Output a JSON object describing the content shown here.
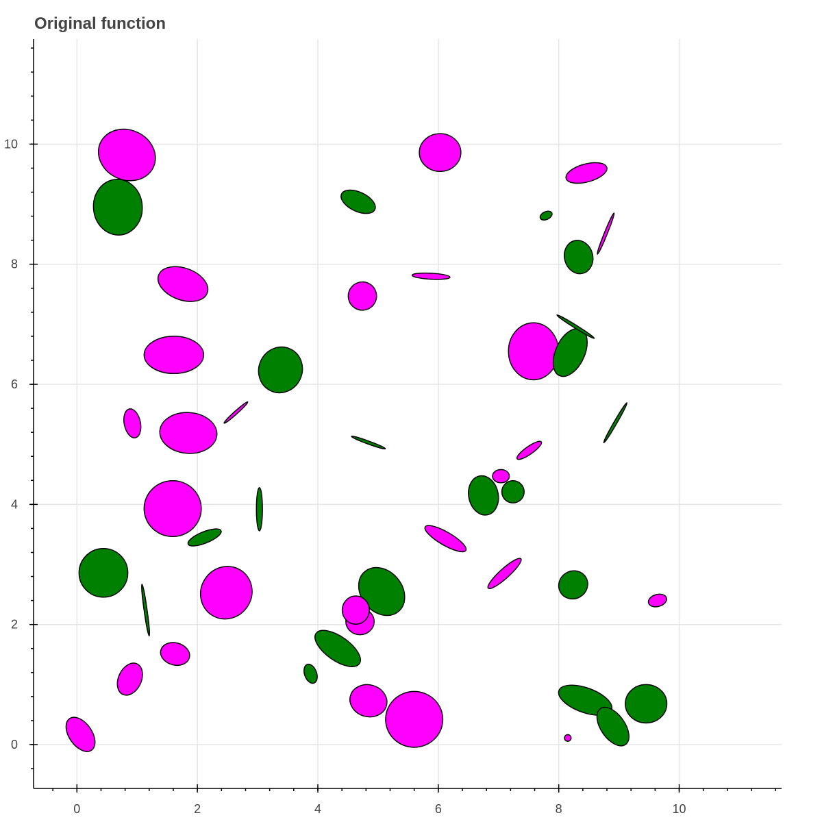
{
  "chart_data": {
    "type": "scatter",
    "title": "Original function",
    "xlabel": "",
    "ylabel": "",
    "xlim": [
      -0.72,
      11.7
    ],
    "ylim": [
      -0.73,
      11.75
    ],
    "grid": true,
    "x_ticks": [
      0,
      2,
      4,
      6,
      8,
      10
    ],
    "y_ticks": [
      0,
      2,
      4,
      6,
      8,
      10
    ],
    "x_minor_step": 0.4,
    "y_minor_step": 0.4,
    "colors": {
      "magenta": "#ff00ff",
      "green": "#008000"
    },
    "ellipses": [
      {
        "x": 0.83,
        "y": 9.82,
        "w": 0.97,
        "h": 0.83,
        "angle": -25,
        "color": "magenta"
      },
      {
        "x": 0.68,
        "y": 8.95,
        "w": 0.81,
        "h": 0.93,
        "angle": 5,
        "color": "green"
      },
      {
        "x": 1.76,
        "y": 7.67,
        "w": 0.86,
        "h": 0.53,
        "angle": -20,
        "color": "magenta"
      },
      {
        "x": 1.61,
        "y": 6.49,
        "w": 0.99,
        "h": 0.62,
        "angle": 0,
        "color": "magenta"
      },
      {
        "x": 0.92,
        "y": 5.35,
        "w": 0.27,
        "h": 0.49,
        "angle": 12,
        "color": "magenta"
      },
      {
        "x": 1.85,
        "y": 5.19,
        "w": 0.95,
        "h": 0.68,
        "angle": -4,
        "color": "magenta"
      },
      {
        "x": 1.59,
        "y": 3.93,
        "w": 0.95,
        "h": 0.93,
        "angle": 0,
        "color": "magenta"
      },
      {
        "x": 2.12,
        "y": 3.45,
        "w": 0.59,
        "h": 0.19,
        "angle": 22,
        "color": "green"
      },
      {
        "x": 0.44,
        "y": 2.86,
        "w": 0.81,
        "h": 0.81,
        "angle": 0,
        "color": "green"
      },
      {
        "x": 2.48,
        "y": 2.53,
        "w": 0.84,
        "h": 0.89,
        "angle": -35,
        "color": "magenta"
      },
      {
        "x": 1.14,
        "y": 2.24,
        "w": 0.05,
        "h": 0.87,
        "angle": 8,
        "color": "green"
      },
      {
        "x": 1.63,
        "y": 1.51,
        "w": 0.49,
        "h": 0.37,
        "angle": -15,
        "color": "magenta"
      },
      {
        "x": 0.88,
        "y": 1.09,
        "w": 0.38,
        "h": 0.56,
        "angle": -25,
        "color": "magenta"
      },
      {
        "x": 0.06,
        "y": 0.17,
        "w": 0.38,
        "h": 0.64,
        "angle": 35,
        "color": "magenta"
      },
      {
        "x": 2.64,
        "y": 5.53,
        "w": 0.05,
        "h": 0.53,
        "angle": -48,
        "color": "magenta"
      },
      {
        "x": 3.03,
        "y": 3.92,
        "w": 0.1,
        "h": 0.72,
        "angle": 0,
        "color": "green"
      },
      {
        "x": 3.38,
        "y": 6.24,
        "w": 0.72,
        "h": 0.77,
        "angle": -25,
        "color": "green"
      },
      {
        "x": 4.67,
        "y": 9.04,
        "w": 0.61,
        "h": 0.32,
        "angle": -25,
        "color": "green"
      },
      {
        "x": 4.74,
        "y": 7.47,
        "w": 0.47,
        "h": 0.47,
        "angle": 15,
        "color": "magenta"
      },
      {
        "x": 5.88,
        "y": 7.8,
        "w": 0.63,
        "h": 0.1,
        "angle": -3,
        "color": "magenta"
      },
      {
        "x": 6.03,
        "y": 9.86,
        "w": 0.69,
        "h": 0.63,
        "angle": 0,
        "color": "magenta"
      },
      {
        "x": 4.84,
        "y": 5.03,
        "w": 0.6,
        "h": 0.05,
        "angle": -20,
        "color": "green"
      },
      {
        "x": 5.06,
        "y": 2.55,
        "w": 0.68,
        "h": 0.87,
        "angle": 40,
        "color": "green"
      },
      {
        "x": 4.7,
        "y": 2.05,
        "w": 0.47,
        "h": 0.44,
        "angle": 0,
        "color": "magenta"
      },
      {
        "x": 4.63,
        "y": 2.24,
        "w": 0.45,
        "h": 0.47,
        "angle": 0,
        "color": "magenta"
      },
      {
        "x": 4.33,
        "y": 1.6,
        "w": 0.4,
        "h": 0.88,
        "angle": 55,
        "color": "green"
      },
      {
        "x": 3.88,
        "y": 1.18,
        "w": 0.2,
        "h": 0.33,
        "angle": 20,
        "color": "green"
      },
      {
        "x": 4.84,
        "y": 0.73,
        "w": 0.62,
        "h": 0.53,
        "angle": -15,
        "color": "magenta"
      },
      {
        "x": 5.6,
        "y": 0.42,
        "w": 0.95,
        "h": 0.93,
        "angle": 0,
        "color": "magenta"
      },
      {
        "x": 6.12,
        "y": 3.43,
        "w": 0.78,
        "h": 0.22,
        "angle": -30,
        "color": "magenta"
      },
      {
        "x": 6.75,
        "y": 4.15,
        "w": 0.49,
        "h": 0.66,
        "angle": 12,
        "color": "green"
      },
      {
        "x": 7.04,
        "y": 4.47,
        "w": 0.28,
        "h": 0.22,
        "angle": 0,
        "color": "magenta"
      },
      {
        "x": 7.24,
        "y": 4.21,
        "w": 0.37,
        "h": 0.37,
        "angle": 0,
        "color": "green"
      },
      {
        "x": 7.51,
        "y": 4.9,
        "w": 0.49,
        "h": 0.13,
        "angle": 35,
        "color": "magenta"
      },
      {
        "x": 7.1,
        "y": 2.85,
        "w": 0.73,
        "h": 0.16,
        "angle": 42,
        "color": "magenta"
      },
      {
        "x": 7.58,
        "y": 6.55,
        "w": 0.83,
        "h": 0.95,
        "angle": 0,
        "color": "magenta"
      },
      {
        "x": 8.19,
        "y": 6.53,
        "w": 0.48,
        "h": 0.85,
        "angle": -25,
        "color": "green"
      },
      {
        "x": 8.28,
        "y": 6.96,
        "w": 0.73,
        "h": 0.05,
        "angle": -32,
        "color": "green"
      },
      {
        "x": 8.33,
        "y": 8.12,
        "w": 0.47,
        "h": 0.56,
        "angle": 15,
        "color": "green"
      },
      {
        "x": 7.79,
        "y": 8.81,
        "w": 0.21,
        "h": 0.13,
        "angle": 25,
        "color": "green"
      },
      {
        "x": 8.78,
        "y": 8.51,
        "w": 0.05,
        "h": 0.74,
        "angle": -22,
        "color": "magenta"
      },
      {
        "x": 8.46,
        "y": 9.52,
        "w": 0.7,
        "h": 0.3,
        "angle": 15,
        "color": "magenta"
      },
      {
        "x": 8.94,
        "y": 5.36,
        "w": 0.05,
        "h": 0.77,
        "angle": -30,
        "color": "green"
      },
      {
        "x": 8.24,
        "y": 2.66,
        "w": 0.49,
        "h": 0.46,
        "angle": 30,
        "color": "green"
      },
      {
        "x": 9.64,
        "y": 2.4,
        "w": 0.31,
        "h": 0.2,
        "angle": 15,
        "color": "magenta"
      },
      {
        "x": 8.44,
        "y": 0.74,
        "w": 0.93,
        "h": 0.41,
        "angle": -20,
        "color": "green"
      },
      {
        "x": 8.9,
        "y": 0.3,
        "w": 0.4,
        "h": 0.73,
        "angle": 35,
        "color": "green"
      },
      {
        "x": 9.45,
        "y": 0.68,
        "w": 0.69,
        "h": 0.64,
        "angle": 0,
        "color": "green"
      },
      {
        "x": 8.15,
        "y": 0.11,
        "w": 0.11,
        "h": 0.11,
        "angle": 0,
        "color": "magenta"
      }
    ]
  }
}
